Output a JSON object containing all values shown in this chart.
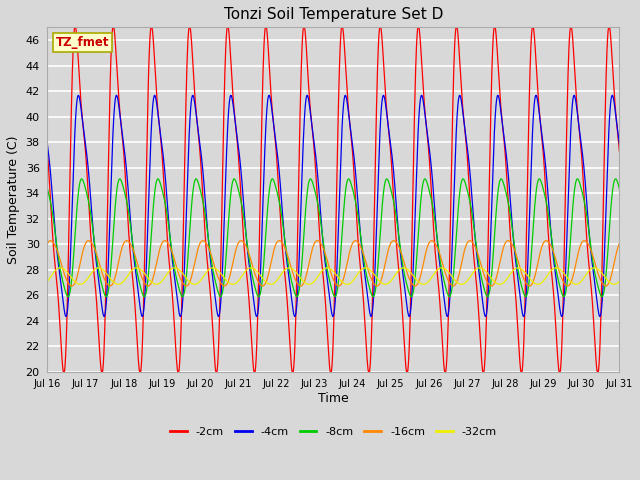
{
  "title": "Tonzi Soil Temperature Set D",
  "xlabel": "Time",
  "ylabel": "Soil Temperature (C)",
  "ylim": [
    20,
    47
  ],
  "background_color": "#d8d8d8",
  "plot_bg_color": "#d8d8d8",
  "grid_color": "white",
  "legend_label": "TZ_fmet",
  "legend_box_color": "#ffffcc",
  "legend_box_edge": "#aaaa00",
  "series_colors": [
    "#ff0000",
    "#0000ee",
    "#00cc00",
    "#ff8800",
    "#eeee00"
  ],
  "series_labels": [
    "-2cm",
    "-4cm",
    "-8cm",
    "-16cm",
    "-32cm"
  ],
  "n_days": 15,
  "start_day": 16,
  "end_day": 31,
  "points_per_day": 144,
  "params": [
    {
      "amp": 11.5,
      "mean": 33.5,
      "lag": 0.0,
      "sharpness": 0.35
    },
    {
      "amp": 8.0,
      "mean": 33.0,
      "lag": 0.07,
      "sharpness": 0.25
    },
    {
      "amp": 4.5,
      "mean": 30.5,
      "lag": 0.14,
      "sharpness": 0.18
    },
    {
      "amp": 1.8,
      "mean": 28.5,
      "lag": 0.28,
      "sharpness": 0.08
    },
    {
      "amp": 0.65,
      "mean": 27.5,
      "lag": 0.52,
      "sharpness": 0.03
    }
  ]
}
